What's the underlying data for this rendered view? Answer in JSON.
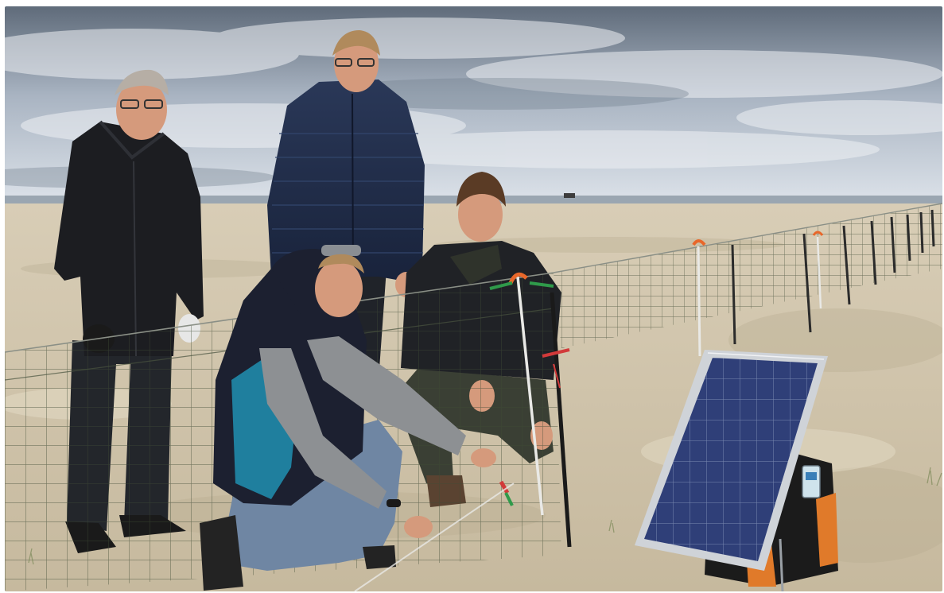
{
  "photo": {
    "palette": {
      "sky_top": "#5f6b7a",
      "sky_mid": "#a9b4c2",
      "sky_low": "#dde3ea",
      "sea": "#9aa6b1",
      "sand_far": "#d8cdb6",
      "sand_near": "#cbbfa6",
      "sand_shadow": "#b8ab90",
      "net": "#3f4a35",
      "post_orange": "#e8672a",
      "post_white": "#e9e9e6",
      "jacket_black": "#1c1d21",
      "jacket_navy": "#1e2a44",
      "vest_teal": "#1f7f9e",
      "hoodie_grey": "#8d9093",
      "jeans": "#6f86a3",
      "skin": "#d59a7c",
      "hair_grey": "#b6aea5",
      "hair_blond": "#b08a5c",
      "hair_brown": "#5a3b25",
      "solar_cell": "#2f3f78",
      "solar_frame": "#cfd3d8",
      "battery_black": "#1b1b1b",
      "battery_orange": "#e07a2a"
    },
    "subjects": [
      {
        "id": "man-left",
        "icon": "person-standing-icon"
      },
      {
        "id": "man-tall",
        "icon": "person-standing-icon"
      },
      {
        "id": "man-kneeling-right",
        "icon": "person-kneeling-icon"
      },
      {
        "id": "man-kneeling-front",
        "icon": "person-kneeling-icon"
      }
    ],
    "objects": [
      {
        "id": "electric-fence",
        "icon": "fence-icon"
      },
      {
        "id": "solar-panel",
        "icon": "solar-panel-icon"
      },
      {
        "id": "fence-energizer",
        "icon": "battery-icon"
      }
    ]
  }
}
